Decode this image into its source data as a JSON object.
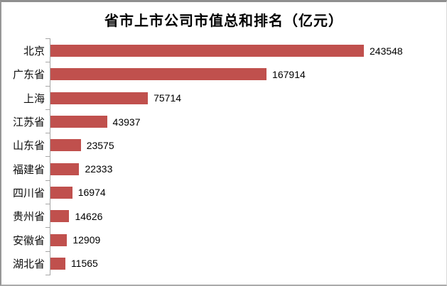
{
  "chart_data": {
    "type": "bar",
    "orientation": "horizontal",
    "title": "省市上市公司市值总和排名（亿元）",
    "categories": [
      "北京",
      "广东省",
      "上海",
      "江苏省",
      "山东省",
      "福建省",
      "四川省",
      "贵州省",
      "安徽省",
      "湖北省"
    ],
    "values": [
      243548,
      167914,
      75714,
      43937,
      23575,
      22333,
      16974,
      14626,
      12909,
      11565
    ],
    "data_labels": true,
    "legend": false,
    "x_axis_labels_visible": false,
    "grid": false,
    "bar_color": "#C0504D",
    "axis_color": "#A6A6A6",
    "text_color": "#000000",
    "background_color": "#FFFFFF"
  }
}
